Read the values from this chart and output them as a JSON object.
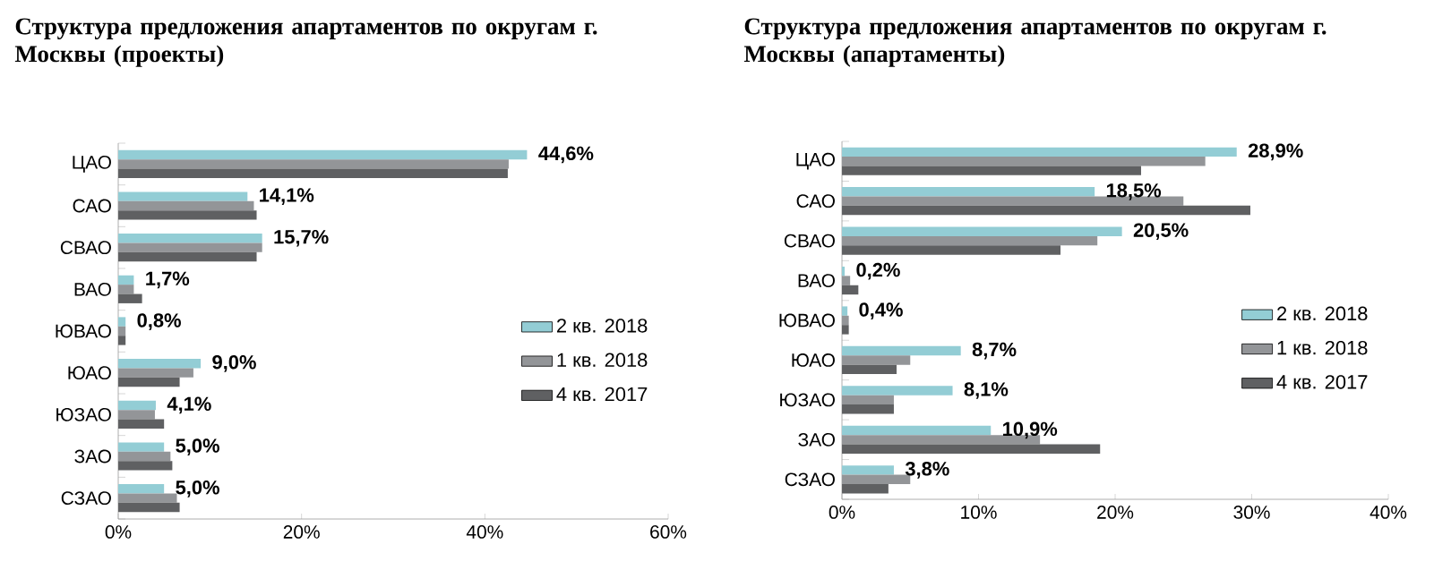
{
  "chart_data": [
    {
      "type": "bar",
      "orientation": "horizontal",
      "title": "Структура предложения апартаментов по округам г. Москвы (проекты)",
      "categories": [
        "ЦАО",
        "САО",
        "СВАО",
        "ВАО",
        "ЮВАО",
        "ЮАО",
        "ЮЗАО",
        "ЗАО",
        "СЗАО"
      ],
      "series": [
        {
          "name": "2 кв. 2018",
          "color": "#93cdd5",
          "values": [
            44.6,
            14.1,
            15.7,
            1.7,
            0.8,
            9.0,
            4.1,
            5.0,
            5.0
          ],
          "value_labels": [
            "44,6%",
            "14,1%",
            "15,7%",
            "1,7%",
            "0,8%",
            "9,0%",
            "4,1%",
            "5,0%",
            "5,0%"
          ]
        },
        {
          "name": "1 кв. 2018",
          "color": "#939598",
          "values": [
            42.6,
            14.8,
            15.7,
            1.7,
            0.8,
            8.2,
            4.0,
            5.7,
            6.4
          ]
        },
        {
          "name": "4 кв. 2017",
          "color": "#5f6062",
          "values": [
            42.5,
            15.1,
            15.1,
            2.6,
            0.8,
            6.7,
            5.0,
            5.9,
            6.7
          ]
        }
      ],
      "xlim": [
        0,
        60
      ],
      "xticks": [
        {
          "value": 0,
          "label": "0%"
        },
        {
          "value": 20,
          "label": "20%"
        },
        {
          "value": 40,
          "label": "40%"
        },
        {
          "value": 60,
          "label": "60%"
        }
      ],
      "legend": "right"
    },
    {
      "type": "bar",
      "orientation": "horizontal",
      "title": "Структура предложения апартаментов по округам г. Москвы (апартаменты)",
      "categories": [
        "ЦАО",
        "САО",
        "СВАО",
        "ВАО",
        "ЮВАО",
        "ЮАО",
        "ЮЗАО",
        "ЗАО",
        "СЗАО"
      ],
      "series": [
        {
          "name": "2 кв. 2018",
          "color": "#93cdd5",
          "values": [
            28.9,
            18.5,
            20.5,
            0.2,
            0.4,
            8.7,
            8.1,
            10.9,
            3.8
          ],
          "value_labels": [
            "28,9%",
            "18,5%",
            "20,5%",
            "0,2%",
            "0,4%",
            "8,7%",
            "8,1%",
            "10,9%",
            "3,8%"
          ]
        },
        {
          "name": "1 кв. 2018",
          "color": "#939598",
          "values": [
            26.6,
            25.0,
            18.7,
            0.6,
            0.5,
            5.0,
            3.8,
            14.5,
            5.0
          ]
        },
        {
          "name": "4 кв. 2017",
          "color": "#5f6062",
          "values": [
            21.9,
            29.9,
            16.0,
            1.2,
            0.5,
            4.0,
            3.8,
            18.9,
            3.4
          ]
        }
      ],
      "xlim": [
        0,
        40
      ],
      "xticks": [
        {
          "value": 0,
          "label": "0%"
        },
        {
          "value": 10,
          "label": "10%"
        },
        {
          "value": 20,
          "label": "20%"
        },
        {
          "value": 30,
          "label": "30%"
        },
        {
          "value": 40,
          "label": "40%"
        }
      ],
      "legend": "right"
    }
  ]
}
